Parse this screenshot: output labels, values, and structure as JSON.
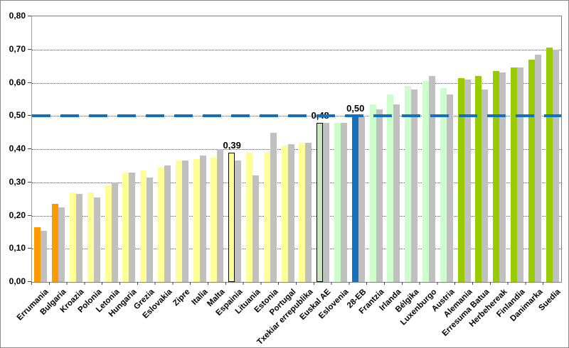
{
  "page": {
    "background": "#FFFFFF",
    "frame_border": "#8A8A8A",
    "plot_border": "#808080",
    "gridline_color": "#555555",
    "text_color": "#000000"
  },
  "chart_data": {
    "type": "bar",
    "title": "",
    "xlabel": "",
    "ylabel": "",
    "ylim": [
      0,
      0.8
    ],
    "ytick_labels": [
      "0,00",
      "0,10",
      "0,20",
      "0,30",
      "0,40",
      "0,50",
      "0,60",
      "0,70",
      "0,80"
    ],
    "ytick_values": [
      0.0,
      0.1,
      0.2,
      0.3,
      0.4,
      0.5,
      0.6,
      0.7,
      0.8
    ],
    "grid": "horizontal-dotted",
    "legend_position": "none",
    "bars_per_category": 2,
    "comparison_color": "#C0C0C0",
    "reference_line": {
      "value": 0.5,
      "color": "#1270C0",
      "style": "dashed",
      "thickness": 4
    },
    "categories": [
      {
        "label": "Errumania",
        "main": 0.165,
        "comparison": 0.155,
        "color": "#FF9900"
      },
      {
        "label": "Bulgaria",
        "main": 0.235,
        "comparison": 0.225,
        "color": "#FF9900"
      },
      {
        "label": "Kroazia",
        "main": 0.27,
        "comparison": 0.265,
        "color": "#FFFF99"
      },
      {
        "label": "Polonia",
        "main": 0.27,
        "comparison": 0.255,
        "color": "#FFFF99"
      },
      {
        "label": "Letonia",
        "main": 0.29,
        "comparison": 0.3,
        "color": "#FFFF99"
      },
      {
        "label": "Hungaria",
        "main": 0.33,
        "comparison": 0.33,
        "color": "#FFFF99"
      },
      {
        "label": "Grezia",
        "main": 0.335,
        "comparison": 0.315,
        "color": "#FFFF99"
      },
      {
        "label": "Eslovakia",
        "main": 0.345,
        "comparison": 0.35,
        "color": "#FFFF99"
      },
      {
        "label": "Zipre",
        "main": 0.365,
        "comparison": 0.365,
        "color": "#FFFF99"
      },
      {
        "label": "Italia",
        "main": 0.37,
        "comparison": 0.38,
        "color": "#FFFF99"
      },
      {
        "label": "Malta",
        "main": 0.375,
        "comparison": 0.4,
        "color": "#FFFF99"
      },
      {
        "label": "Espainia",
        "main": 0.39,
        "comparison": 0.365,
        "color": "#FFFF99",
        "outlined": true,
        "annotation": "0,39"
      },
      {
        "label": "Lituania",
        "main": 0.39,
        "comparison": 0.32,
        "color": "#FFFF99"
      },
      {
        "label": "Estonia",
        "main": 0.39,
        "comparison": 0.45,
        "color": "#FFFF99"
      },
      {
        "label": "Portugal",
        "main": 0.41,
        "comparison": 0.415,
        "color": "#FFFF99"
      },
      {
        "label": "Txekiar errepublika",
        "main": 0.42,
        "comparison": 0.42,
        "color": "#FFFF99"
      },
      {
        "label": "Euskal AE",
        "main": 0.48,
        "comparison": 0.48,
        "color": "#C9E5BE",
        "outlined": true,
        "textured": true,
        "annotation": "0,48"
      },
      {
        "label": "Eslovenia",
        "main": 0.48,
        "comparison": 0.48,
        "color": "#CCFFCC"
      },
      {
        "label": "28-EB",
        "main": 0.5,
        "comparison": 0.5,
        "color": "#1572BF",
        "annotation": "0,50"
      },
      {
        "label": "Frantzia",
        "main": 0.535,
        "comparison": 0.52,
        "color": "#CCFFCC"
      },
      {
        "label": "Irlanda",
        "main": 0.565,
        "comparison": 0.535,
        "color": "#CCFFCC"
      },
      {
        "label": "Bélgika",
        "main": 0.59,
        "comparison": 0.58,
        "color": "#CCFFCC"
      },
      {
        "label": "Luxenburgo",
        "main": 0.605,
        "comparison": 0.62,
        "color": "#CCFFCC"
      },
      {
        "label": "Austria",
        "main": 0.585,
        "comparison": 0.565,
        "color": "#CCFFCC"
      },
      {
        "label": "Alemania",
        "main": 0.615,
        "comparison": 0.61,
        "color": "#99CC00"
      },
      {
        "label": "Erresuma Batua",
        "main": 0.62,
        "comparison": 0.58,
        "color": "#99CC00"
      },
      {
        "label": "Herbehereak",
        "main": 0.635,
        "comparison": 0.63,
        "color": "#99CC00"
      },
      {
        "label": "Finlandia",
        "main": 0.645,
        "comparison": 0.645,
        "color": "#99CC00"
      },
      {
        "label": "Danimarka",
        "main": 0.67,
        "comparison": 0.685,
        "color": "#99CC00"
      },
      {
        "label": "Suedia",
        "main": 0.705,
        "comparison": 0.7,
        "color": "#99CC00"
      }
    ]
  }
}
